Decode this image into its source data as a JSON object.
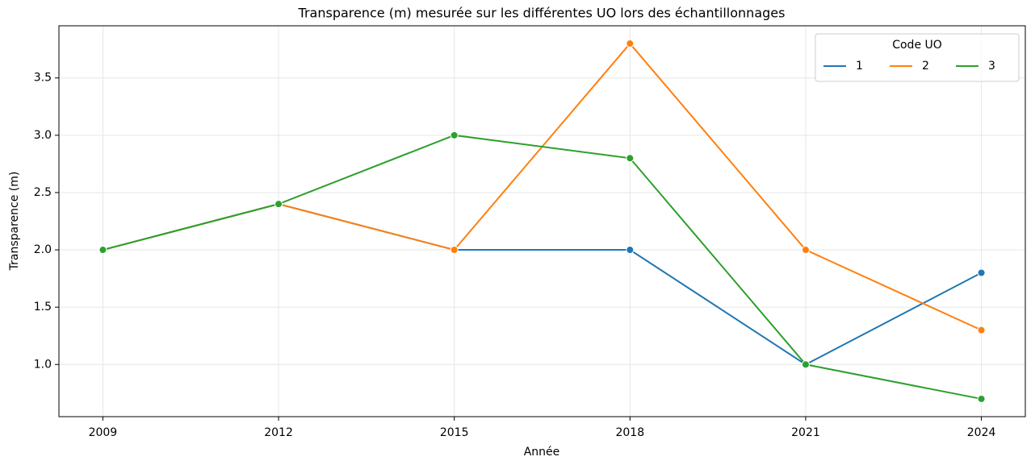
{
  "chart_data": {
    "type": "line",
    "title": "Transparence (m) mesurée sur les différentes UO lors des échantillonnages",
    "x_label": "Année",
    "y_label": "Transparence (m)",
    "x": [
      2009,
      2012,
      2015,
      2018,
      2021,
      2024
    ],
    "series": [
      {
        "name": "1",
        "color": "#1f77b4",
        "values": [
          2.0,
          2.4,
          2.0,
          2.0,
          1.0,
          1.8
        ]
      },
      {
        "name": "2",
        "color": "#ff7f0e",
        "values": [
          2.0,
          2.4,
          2.0,
          3.8,
          2.0,
          1.3
        ]
      },
      {
        "name": "3",
        "color": "#2ca02c",
        "values": [
          2.0,
          2.4,
          3.0,
          2.8,
          1.0,
          0.7
        ]
      }
    ],
    "xlim": [
      2008.25,
      2024.75
    ],
    "xticks": [
      2009,
      2012,
      2015,
      2018,
      2021,
      2024
    ],
    "ylim": [
      0.545,
      3.955
    ],
    "yticks": [
      {
        "value": 1.0,
        "label": "1.0"
      },
      {
        "value": 1.5,
        "label": "1.5"
      },
      {
        "value": 2.0,
        "label": "2.0"
      },
      {
        "value": 2.5,
        "label": "2.5"
      },
      {
        "value": 3.0,
        "label": "3.0"
      },
      {
        "value": 3.5,
        "label": "3.5"
      }
    ],
    "grid": true,
    "legend_title": "Code UO",
    "legend_position": "upper right"
  }
}
